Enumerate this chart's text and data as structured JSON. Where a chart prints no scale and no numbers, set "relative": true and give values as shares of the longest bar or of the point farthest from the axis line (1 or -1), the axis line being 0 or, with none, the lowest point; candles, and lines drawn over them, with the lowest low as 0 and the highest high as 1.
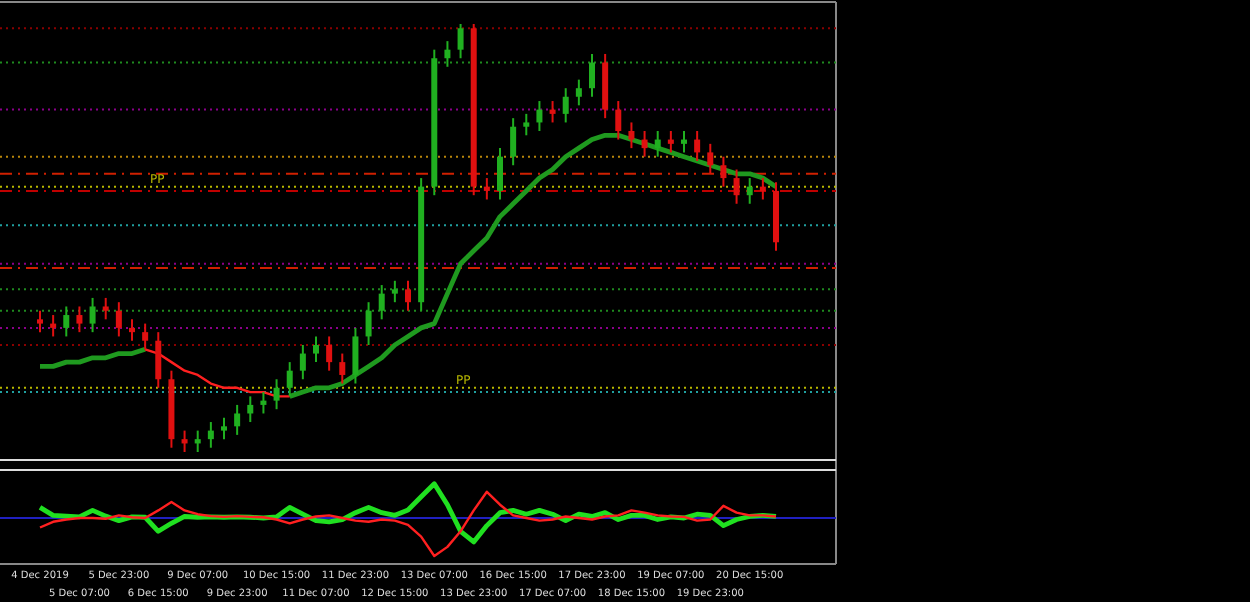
{
  "chart_data": [
    {
      "type": "candlestick",
      "relative": true,
      "tick_labels": false,
      "categories": [
        null,
        null,
        null,
        null,
        null,
        null,
        null,
        null,
        null,
        null,
        null,
        null,
        null,
        null,
        null,
        null,
        null,
        null,
        null,
        null,
        null,
        null,
        null,
        null,
        null,
        null,
        null,
        null,
        null,
        null,
        null,
        null,
        null,
        null,
        null,
        null,
        null,
        null,
        null,
        null,
        null,
        null,
        null,
        null,
        null,
        null,
        null,
        null,
        null,
        null,
        null,
        null,
        null,
        null,
        null,
        null,
        null
      ],
      "ohlc": [
        [
          0.31,
          0.33,
          0.28,
          0.3
        ],
        [
          0.3,
          0.32,
          0.27,
          0.29
        ],
        [
          0.29,
          0.34,
          0.27,
          0.32
        ],
        [
          0.32,
          0.34,
          0.28,
          0.3
        ],
        [
          0.3,
          0.36,
          0.28,
          0.34
        ],
        [
          0.34,
          0.36,
          0.31,
          0.33
        ],
        [
          0.33,
          0.35,
          0.27,
          0.29
        ],
        [
          0.29,
          0.31,
          0.26,
          0.28
        ],
        [
          0.28,
          0.3,
          0.24,
          0.26
        ],
        [
          0.26,
          0.28,
          0.15,
          0.17
        ],
        [
          0.17,
          0.19,
          0.01,
          0.03
        ],
        [
          0.03,
          0.05,
          0.0,
          0.02
        ],
        [
          0.02,
          0.05,
          0.0,
          0.03
        ],
        [
          0.03,
          0.07,
          0.01,
          0.05
        ],
        [
          0.05,
          0.08,
          0.03,
          0.06
        ],
        [
          0.06,
          0.11,
          0.04,
          0.09
        ],
        [
          0.09,
          0.13,
          0.07,
          0.11
        ],
        [
          0.11,
          0.14,
          0.09,
          0.12
        ],
        [
          0.12,
          0.17,
          0.1,
          0.15
        ],
        [
          0.15,
          0.21,
          0.13,
          0.19
        ],
        [
          0.19,
          0.25,
          0.17,
          0.23
        ],
        [
          0.23,
          0.27,
          0.21,
          0.25
        ],
        [
          0.25,
          0.27,
          0.19,
          0.21
        ],
        [
          0.21,
          0.23,
          0.16,
          0.18
        ],
        [
          0.18,
          0.29,
          0.16,
          0.27
        ],
        [
          0.27,
          0.35,
          0.25,
          0.33
        ],
        [
          0.33,
          0.39,
          0.31,
          0.37
        ],
        [
          0.37,
          0.4,
          0.35,
          0.38
        ],
        [
          0.38,
          0.4,
          0.33,
          0.35
        ],
        [
          0.35,
          0.64,
          0.33,
          0.62
        ],
        [
          0.62,
          0.94,
          0.6,
          0.92
        ],
        [
          0.92,
          0.96,
          0.9,
          0.94
        ],
        [
          0.94,
          1.0,
          0.92,
          0.99
        ],
        [
          0.99,
          1.0,
          0.6,
          0.62
        ],
        [
          0.62,
          0.64,
          0.59,
          0.61
        ],
        [
          0.61,
          0.71,
          0.59,
          0.69
        ],
        [
          0.69,
          0.78,
          0.67,
          0.76
        ],
        [
          0.76,
          0.79,
          0.74,
          0.77
        ],
        [
          0.77,
          0.82,
          0.75,
          0.8
        ],
        [
          0.8,
          0.82,
          0.77,
          0.79
        ],
        [
          0.79,
          0.85,
          0.77,
          0.83
        ],
        [
          0.83,
          0.87,
          0.81,
          0.85
        ],
        [
          0.85,
          0.93,
          0.83,
          0.91
        ],
        [
          0.91,
          0.93,
          0.78,
          0.8
        ],
        [
          0.8,
          0.82,
          0.73,
          0.75
        ],
        [
          0.75,
          0.77,
          0.71,
          0.73
        ],
        [
          0.73,
          0.75,
          0.69,
          0.71
        ],
        [
          0.71,
          0.75,
          0.69,
          0.73
        ],
        [
          0.73,
          0.75,
          0.7,
          0.72
        ],
        [
          0.72,
          0.75,
          0.7,
          0.73
        ],
        [
          0.73,
          0.75,
          0.68,
          0.7
        ],
        [
          0.7,
          0.72,
          0.65,
          0.67
        ],
        [
          0.67,
          0.69,
          0.62,
          0.64
        ],
        [
          0.64,
          0.66,
          0.58,
          0.6
        ],
        [
          0.6,
          0.64,
          0.58,
          0.62
        ],
        [
          0.62,
          0.64,
          0.59,
          0.61
        ],
        [
          0.61,
          0.63,
          0.47,
          0.49
        ]
      ],
      "series": [
        {
          "type": "line",
          "color": "#1f9a1f",
          "values": [
            0.2,
            0.2,
            0.21,
            0.21,
            0.22,
            0.22,
            0.23,
            0.23,
            0.24,
            null,
            null,
            null,
            null,
            null,
            null,
            null,
            null,
            null,
            null,
            0.13,
            0.14,
            0.15,
            0.15,
            0.16,
            0.18,
            0.2,
            0.22,
            0.25,
            0.27,
            0.29,
            0.3,
            0.37,
            0.44,
            0.47,
            0.5,
            0.55,
            0.58,
            0.61,
            0.64,
            0.66,
            0.69,
            0.71,
            0.73,
            0.74,
            0.74,
            0.73,
            0.72,
            0.71,
            0.7,
            0.69,
            0.68,
            0.67,
            0.66,
            0.65,
            0.65,
            0.64,
            0.62
          ]
        },
        {
          "type": "line",
          "color": "#ff2020",
          "values": [
            null,
            null,
            null,
            null,
            null,
            null,
            null,
            null,
            0.24,
            0.23,
            0.21,
            0.19,
            0.18,
            0.16,
            0.15,
            0.15,
            0.14,
            0.14,
            0.13,
            0.13,
            null,
            null,
            null,
            null,
            null,
            null,
            null,
            null,
            null,
            null,
            null,
            null,
            null,
            null,
            null,
            null,
            null,
            null,
            null,
            null,
            null,
            null,
            null,
            null,
            null,
            null,
            null,
            null,
            null,
            null,
            null,
            null,
            null,
            null,
            null,
            null,
            null
          ]
        }
      ],
      "ref_lines": [
        {
          "axis": "y",
          "value": 0.99,
          "color": "#8b0000",
          "line_style": "dotted"
        },
        {
          "axis": "y",
          "value": 0.91,
          "color": "#1f8a1f",
          "line_style": "dotted"
        },
        {
          "axis": "y",
          "value": 0.8,
          "color": "#8b008b",
          "line_style": "dotted"
        },
        {
          "axis": "y",
          "value": 0.69,
          "color": "#b8860b",
          "line_style": "dotted"
        },
        {
          "axis": "y",
          "value": 0.65,
          "color": "#d02000",
          "line_style": "dashed"
        },
        {
          "axis": "y",
          "value": 0.62,
          "color": "#b8b800",
          "line_style": "dotted",
          "label": "PP"
        },
        {
          "axis": "y",
          "value": 0.61,
          "color": "#c00000",
          "line_style": "dashed"
        },
        {
          "axis": "y",
          "value": 0.53,
          "color": "#20a0a0",
          "line_style": "dotted"
        },
        {
          "axis": "y",
          "value": 0.44,
          "color": "#8b008b",
          "line_style": "dotted"
        },
        {
          "axis": "y",
          "value": 0.43,
          "color": "#d02000",
          "line_style": "dashed"
        },
        {
          "axis": "y",
          "value": 0.38,
          "color": "#1f8a1f",
          "line_style": "dotted"
        },
        {
          "axis": "y",
          "value": 0.33,
          "color": "#1f8a1f",
          "line_style": "dotted"
        },
        {
          "axis": "y",
          "value": 0.29,
          "color": "#8b008b",
          "line_style": "dotted"
        },
        {
          "axis": "y",
          "value": 0.25,
          "color": "#8b0000",
          "line_style": "dotted"
        },
        {
          "axis": "y",
          "value": 0.15,
          "color": "#b8b800",
          "line_style": "dotted",
          "label": "PP"
        },
        {
          "axis": "y",
          "value": 0.14,
          "color": "#20a0a0",
          "line_style": "dotted"
        }
      ]
    },
    {
      "type": "line",
      "relative": true,
      "tick_labels": "x",
      "categories": [
        "4 Dec 2019",
        null,
        null,
        "5 Dec 07:00",
        null,
        null,
        "5 Dec 23:00",
        null,
        null,
        "6 Dec 15:00",
        null,
        null,
        "9 Dec 07:00",
        null,
        null,
        "9 Dec 23:00",
        null,
        null,
        "10 Dec 15:00",
        null,
        null,
        "11 Dec 07:00",
        null,
        null,
        "11 Dec 23:00",
        null,
        null,
        "12 Dec 15:00",
        null,
        null,
        "13 Dec 07:00",
        null,
        null,
        "13 Dec 23:00",
        null,
        null,
        "16 Dec 15:00",
        null,
        null,
        "17 Dec 07:00",
        null,
        null,
        "17 Dec 23:00",
        null,
        null,
        "18 Dec 15:00",
        null,
        null,
        "19 Dec 07:00",
        null,
        null,
        "19 Dec 23:00",
        null,
        null,
        "20 Dec 15:00",
        null,
        null
      ],
      "series": [
        {
          "color": "#20e020",
          "values": [
            0.28,
            0.07,
            0.05,
            0.03,
            0.2,
            0.05,
            -0.07,
            0.03,
            0.02,
            -0.35,
            -0.14,
            0.04,
            0.02,
            0.03,
            0.02,
            0.03,
            0.02,
            0,
            0.03,
            0.28,
            0.1,
            -0.07,
            -0.1,
            -0.04,
            0.14,
            0.28,
            0.14,
            0.07,
            0.21,
            0.56,
            0.9,
            0.35,
            -0.35,
            -0.63,
            -0.2,
            0.14,
            0.2,
            0.1,
            0.2,
            0.1,
            -0.07,
            0.1,
            0.04,
            0.14,
            -0.04,
            0.07,
            0.07,
            -0.04,
            0.03,
            0,
            0.1,
            0.07,
            -0.2,
            -0.04,
            0.04,
            0.07,
            0.04
          ]
        },
        {
          "color": "#ff2020",
          "values": [
            -0.25,
            -0.1,
            -0.04,
            0,
            0,
            -0.02,
            0.07,
            0.02,
            0,
            0.2,
            0.42,
            0.2,
            0.1,
            0.05,
            0.03,
            0.05,
            0.03,
            0.02,
            -0.04,
            -0.14,
            -0.04,
            0.04,
            0.07,
            0,
            -0.07,
            -0.1,
            -0.04,
            -0.07,
            -0.18,
            -0.49,
            -1,
            -0.76,
            -0.35,
            0.2,
            0.69,
            0.35,
            0.07,
            0,
            -0.07,
            -0.04,
            0.04,
            0,
            -0.04,
            0.04,
            0.07,
            0.2,
            0.14,
            0.07,
            0.04,
            0.03,
            -0.07,
            -0.04,
            0.32,
            0.14,
            0.07,
            0.07,
            0.04
          ]
        }
      ],
      "ref_lines": [
        {
          "axis": "y",
          "value": 0,
          "color": "#2020c0",
          "line_style": "solid"
        }
      ]
    }
  ]
}
